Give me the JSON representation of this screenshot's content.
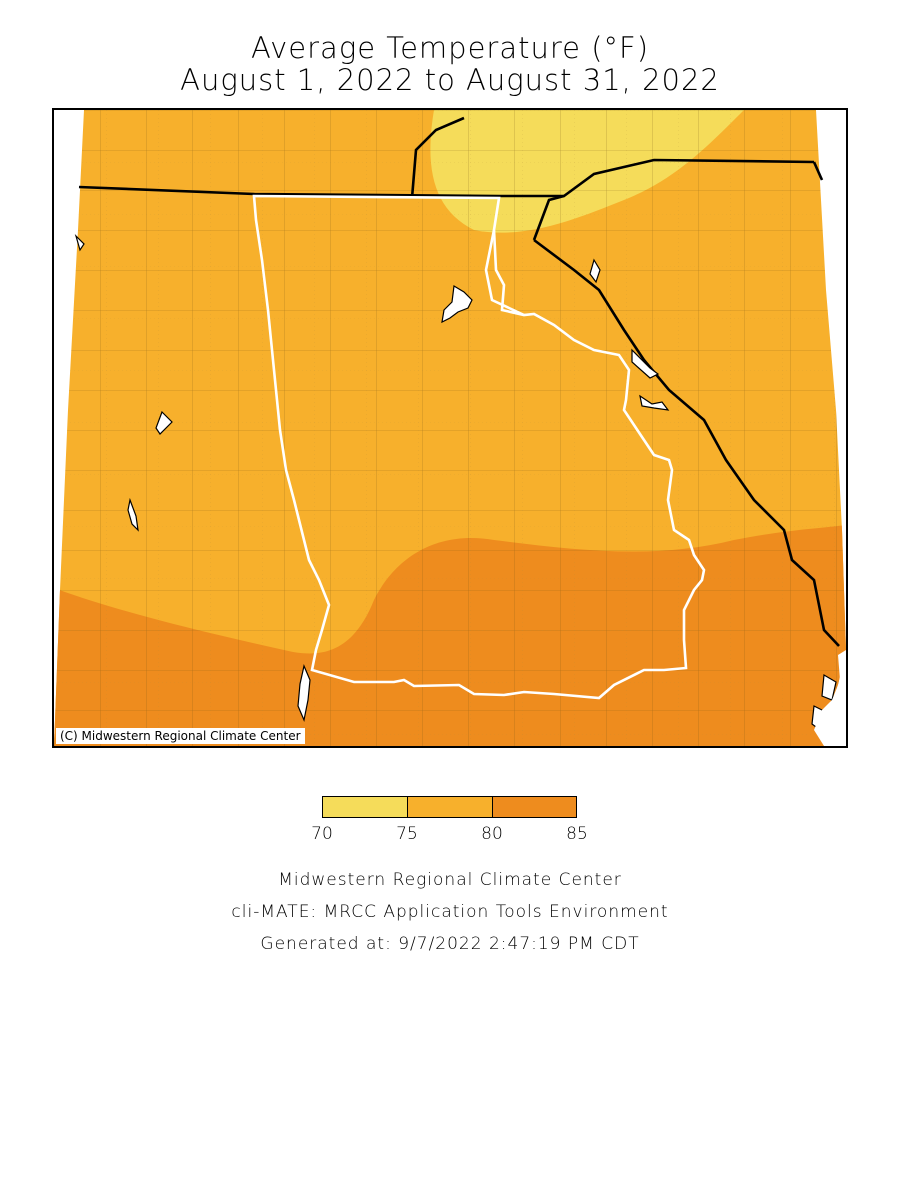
{
  "title": {
    "line1": "Average Temperature (°F)",
    "line2": "August 1, 2022 to August 31, 2022"
  },
  "map": {
    "credit": "(C) Midwestern Regional Climate Center",
    "region_states": [
      "Alabama",
      "Georgia"
    ],
    "temperature_bands": [
      {
        "range": "70-75",
        "color": "#f5dc5a"
      },
      {
        "range": "75-80",
        "color": "#f7b02c"
      },
      {
        "range": "80-85",
        "color": "#ee8c1e"
      }
    ]
  },
  "legend": {
    "colors": [
      "#f5dc5a",
      "#f7b02c",
      "#ee8c1e"
    ],
    "ticks": [
      "70",
      "75",
      "80",
      "85"
    ]
  },
  "footer": {
    "line1": "Midwestern Regional Climate Center",
    "line2": "cli-MATE: MRCC Application Tools Environment",
    "line3": "Generated at: 9/7/2022 2:47:19 PM CDT"
  }
}
